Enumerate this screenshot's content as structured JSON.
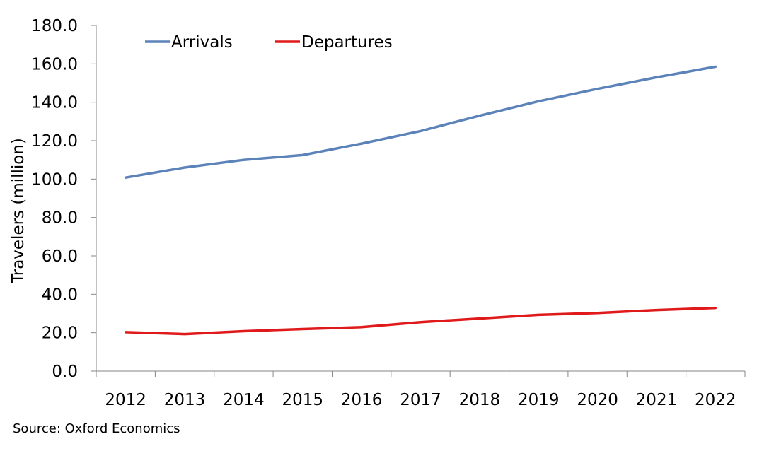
{
  "chart_data": {
    "type": "line",
    "title": "",
    "xlabel": "",
    "ylabel": "Travelers (million)",
    "ylim": [
      0,
      180
    ],
    "y_ticks": [
      "0.0",
      "20.0",
      "40.0",
      "60.0",
      "80.0",
      "100.0",
      "120.0",
      "140.0",
      "160.0",
      "180.0"
    ],
    "y_tick_values": [
      0,
      20,
      40,
      60,
      80,
      100,
      120,
      140,
      160,
      180
    ],
    "categories": [
      "2012",
      "2013",
      "2014",
      "2015",
      "2016",
      "2017",
      "2018",
      "2019",
      "2020",
      "2021",
      "2022"
    ],
    "grid": false,
    "legend_position": "top-left",
    "series": [
      {
        "name": "Arrivals",
        "color": "#5B82B9",
        "values": [
          100.8,
          106.0,
          110.0,
          112.5,
          118.5,
          125.0,
          133.0,
          140.5,
          147.0,
          153.0,
          158.5
        ]
      },
      {
        "name": "Departures",
        "color": "#E01A1A",
        "values": [
          20.3,
          19.3,
          20.8,
          21.9,
          22.9,
          25.5,
          27.4,
          29.3,
          30.3,
          31.8,
          32.9
        ]
      }
    ]
  },
  "source": "Source:  Oxford Economics"
}
